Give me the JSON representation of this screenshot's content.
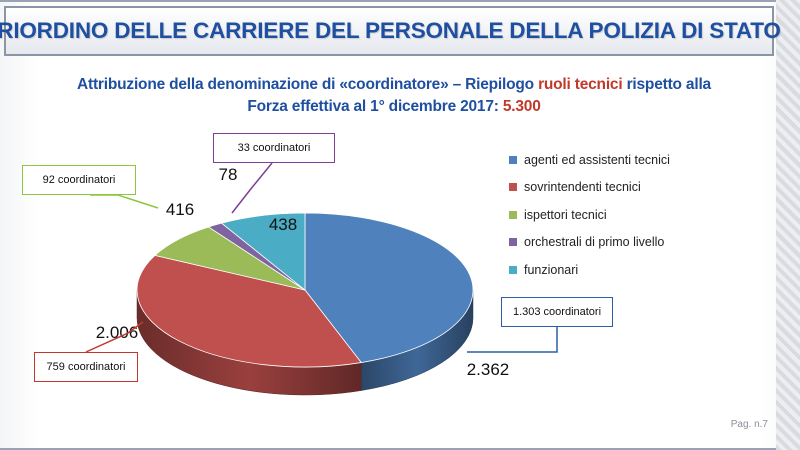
{
  "slide": {
    "title": "RIORDINO DELLE CARRIERE DEL PERSONALE DELLA POLIZIA DI STATO",
    "subtitle_line1_part1": "Attribuzione della denominazione di «coordinatore» – Riepilogo ",
    "subtitle_line1_highlight": "ruoli tecnici",
    "subtitle_line1_part2": " rispetto alla",
    "subtitle_line2_part1": "Forza effettiva al 1° dicembre 2017: ",
    "subtitle_line2_highlight": "5.300",
    "page_number": "Pag. n.7"
  },
  "chart_data": {
    "type": "pie",
    "title": "",
    "categories": [
      "agenti ed assistenti tecnici",
      "sovrintendenti tecnici",
      "ispettori tecnici",
      "orchestrali di primo livello",
      "funzionari"
    ],
    "values": [
      2362,
      2006,
      416,
      78,
      438
    ],
    "value_labels": [
      "2.362",
      "2.006",
      "416",
      "78",
      "438"
    ],
    "colors": [
      "#4f81bd",
      "#c0504d",
      "#9bbb59",
      "#8064a2",
      "#4bacc6"
    ],
    "coordinatori": [
      {
        "category": "agenti ed assistenti tecnici",
        "label": "1.303 coordinatori",
        "color": "#2c5fa8"
      },
      {
        "category": "sovrintendenti tecnici",
        "label": "759 coordinatori",
        "color": "#c0392b"
      },
      {
        "category": "ispettori tecnici",
        "label": "92 coordinatori",
        "color": "#8dc63f"
      },
      {
        "category": "orchestrali di primo livello",
        "label": "33 coordinatori",
        "color": "#7b3f98"
      }
    ],
    "legend_position": "right",
    "style": "3d"
  }
}
